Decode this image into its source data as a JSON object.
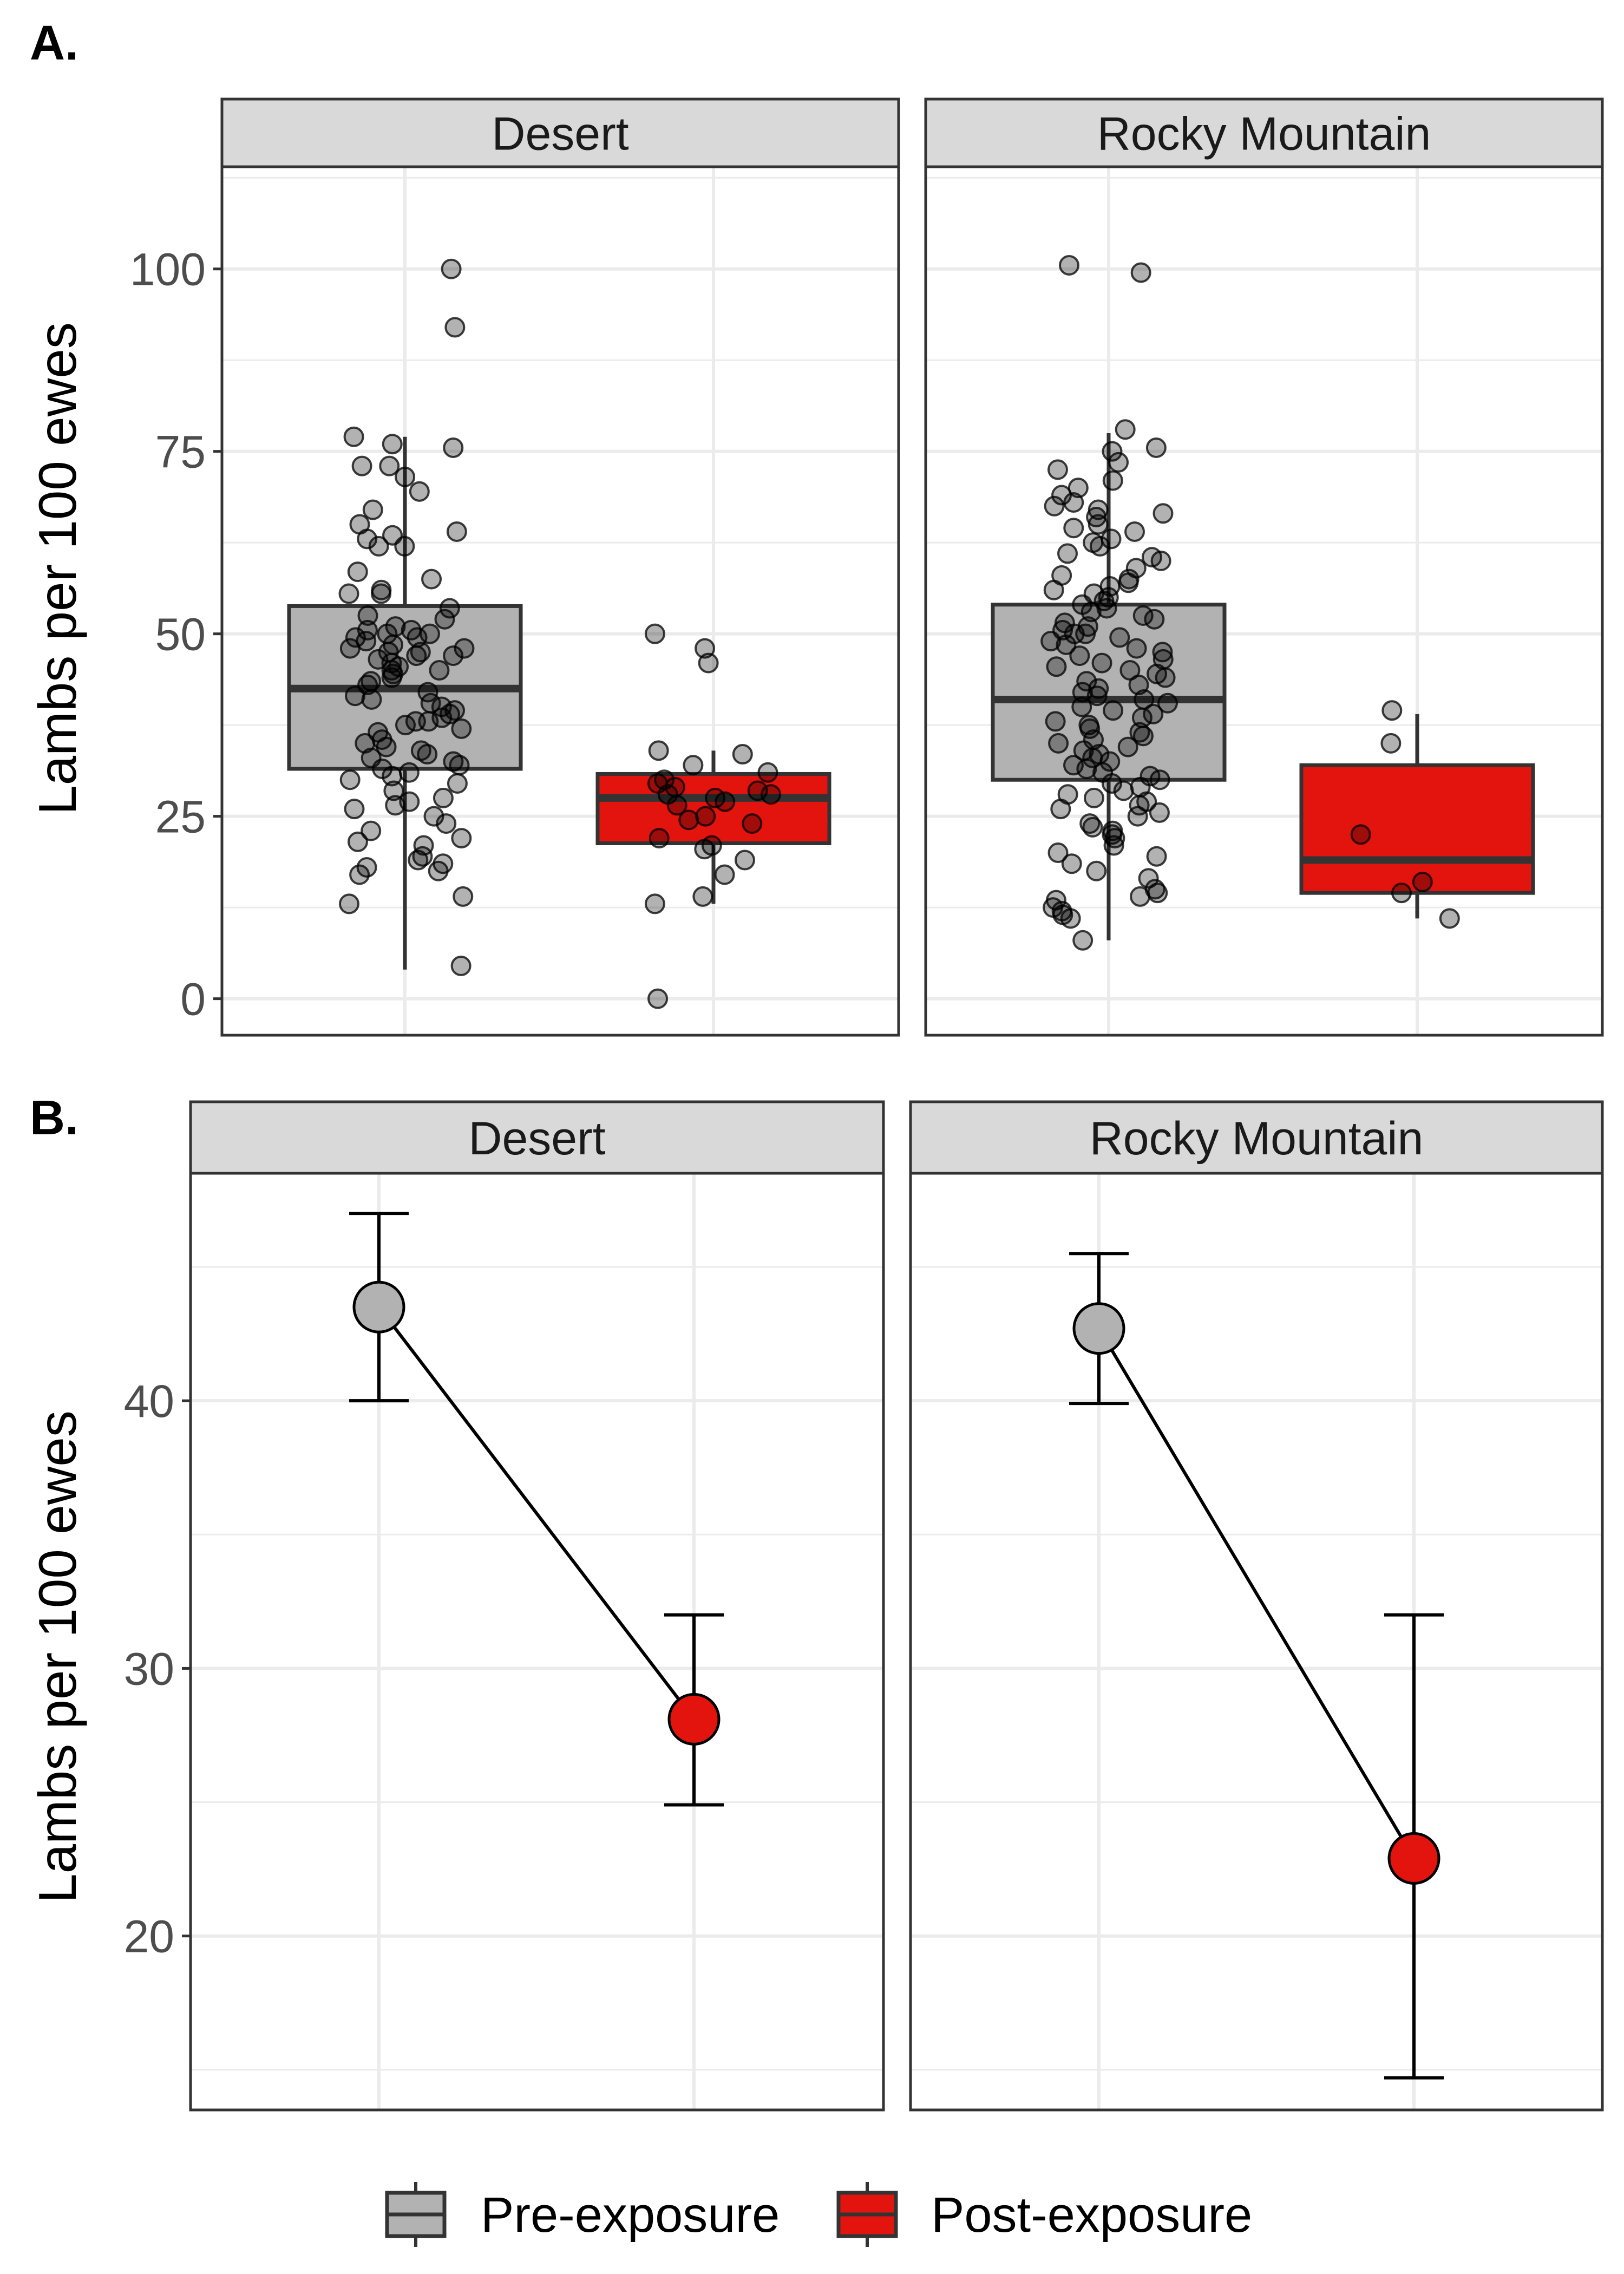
{
  "panel_labels": {
    "a": "A.",
    "b": "B."
  },
  "y_axis_label": "Lambs per 100 ewes",
  "chart_data": [
    {
      "type": "box",
      "panel": "A.",
      "ylabel": "Lambs per 100 ewes",
      "ylim": [
        -5,
        114
      ],
      "yticks": [
        0,
        25,
        50,
        75,
        100
      ],
      "grid": true,
      "facets": [
        {
          "title": "Desert",
          "groups": [
            {
              "series": "Pre-exposure",
              "q1": 31.5,
              "median": 42.5,
              "q3": 53.8,
              "whisker_low": 4,
              "whisker_high": 77,
              "points": [
                100,
                92,
                77,
                76,
                75.5,
                73,
                73,
                71.5,
                69.5,
                67,
                65,
                64,
                63.5,
                63,
                62,
                62,
                58.5,
                57.5,
                56,
                55.5,
                55.5,
                53.5,
                52.5,
                52,
                51,
                50.5,
                50.5,
                50,
                50,
                49.5,
                49.5,
                49,
                48.5,
                48,
                48,
                47.5,
                47.5,
                47,
                47,
                46.5,
                46,
                45.5,
                45,
                45,
                44.5,
                44,
                43.5,
                43,
                42,
                41.5,
                41,
                40.5,
                40,
                39.5,
                39,
                38.5,
                38,
                38,
                37.5,
                37,
                36.5,
                35.5,
                35,
                34.5,
                34,
                33.5,
                33,
                32.5,
                32,
                31.5,
                31,
                30.5,
                30,
                29.5,
                28.5,
                27.5,
                27,
                26.5,
                26,
                25,
                24,
                23,
                22,
                21.5,
                21,
                19.5,
                19,
                18.5,
                18,
                17.5,
                17,
                14,
                13,
                4.5
              ]
            },
            {
              "series": "Post-exposure",
              "q1": 21.3,
              "median": 27.5,
              "q3": 30.8,
              "whisker_low": 13,
              "whisker_high": 34,
              "points": [
                50,
                48,
                46,
                34,
                33.5,
                32,
                31,
                30,
                29.5,
                29,
                28.5,
                28,
                28,
                27.5,
                27,
                26.5,
                25,
                24.5,
                24,
                22,
                21,
                20.5,
                19,
                17,
                14,
                13,
                0
              ]
            }
          ]
        },
        {
          "title": "Rocky Mountain",
          "groups": [
            {
              "series": "Pre-exposure",
              "q1": 30,
              "median": 41,
              "q3": 54,
              "whisker_low": 8,
              "whisker_high": 77.5,
              "points": [
                100.5,
                99.5,
                78,
                75.5,
                75,
                73.5,
                72.5,
                71,
                70,
                69,
                68,
                67.5,
                67,
                66.5,
                66,
                65,
                64.5,
                64,
                63,
                62.5,
                62,
                61,
                60.5,
                60,
                59,
                58,
                57.5,
                57,
                56.5,
                56,
                55.5,
                55,
                54.5,
                54,
                53.5,
                53,
                52.5,
                52,
                51.5,
                51,
                50.5,
                50,
                50,
                49.5,
                49,
                48.5,
                48,
                47.5,
                47,
                46.5,
                46,
                45.5,
                45,
                44.5,
                44,
                43.5,
                43,
                42.5,
                42,
                41.5,
                41,
                40.5,
                40,
                39.5,
                39,
                38.5,
                38,
                37.5,
                37,
                36.5,
                36,
                35.5,
                35,
                34.5,
                34,
                33.5,
                33,
                32.5,
                32,
                31.5,
                31,
                30.5,
                30,
                29.5,
                29,
                28.5,
                28,
                27.5,
                27,
                26.5,
                26,
                25.5,
                25,
                24,
                23.5,
                23,
                22.5,
                22,
                21,
                20,
                19.5,
                18.5,
                17.5,
                16.5,
                15,
                14.5,
                14,
                13.5,
                12.5,
                12,
                11.5,
                11,
                8
              ]
            },
            {
              "series": "Post-exposure",
              "q1": 14.5,
              "median": 19,
              "q3": 32,
              "whisker_low": 11,
              "whisker_high": 39,
              "points": [
                39.5,
                35,
                22.5,
                16,
                14.5,
                11
              ]
            }
          ]
        }
      ]
    },
    {
      "type": "line",
      "panel": "B.",
      "ylabel": "Lambs per 100 ewes",
      "ylim": [
        13.5,
        48.5
      ],
      "yticks": [
        20,
        30,
        40
      ],
      "grid": true,
      "facets": [
        {
          "title": "Desert",
          "groups": [
            {
              "series": "Pre-exposure",
              "mean": 43.5,
              "lower": 40,
              "upper": 47
            },
            {
              "series": "Post-exposure",
              "mean": 28.1,
              "lower": 24.9,
              "upper": 32
            }
          ]
        },
        {
          "title": "Rocky Mountain",
          "groups": [
            {
              "series": "Pre-exposure",
              "mean": 42.7,
              "lower": 39.9,
              "upper": 45.5
            },
            {
              "series": "Post-exposure",
              "mean": 22.9,
              "lower": 14.7,
              "upper": 32
            }
          ]
        }
      ]
    }
  ],
  "legend": {
    "placement": "bottom",
    "items": [
      {
        "label": "Pre-exposure",
        "color": "#b2b2b2"
      },
      {
        "label": "Post-exposure",
        "color": "#e3140d"
      }
    ]
  },
  "colors": {
    "pre": "#b2b2b2",
    "post": "#e3140d",
    "strip": "#d9d9d9",
    "grid": "#ebebeb",
    "outline": "#333333"
  }
}
